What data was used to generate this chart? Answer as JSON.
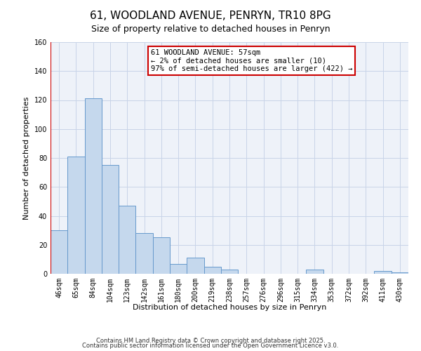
{
  "title": "61, WOODLAND AVENUE, PENRYN, TR10 8PG",
  "subtitle": "Size of property relative to detached houses in Penryn",
  "xlabel": "Distribution of detached houses by size in Penryn",
  "ylabel": "Number of detached properties",
  "bar_values": [
    30,
    81,
    121,
    75,
    47,
    28,
    25,
    7,
    11,
    5,
    3,
    0,
    0,
    0,
    0,
    3,
    0,
    0,
    0,
    2,
    1
  ],
  "bar_labels": [
    "46sqm",
    "65sqm",
    "84sqm",
    "104sqm",
    "123sqm",
    "142sqm",
    "161sqm",
    "180sqm",
    "200sqm",
    "219sqm",
    "238sqm",
    "257sqm",
    "276sqm",
    "296sqm",
    "315sqm",
    "334sqm",
    "353sqm",
    "372sqm",
    "392sqm",
    "411sqm",
    "430sqm"
  ],
  "bar_color": "#c5d8ed",
  "bar_edge_color": "#6699cc",
  "background_color": "#eef2f9",
  "grid_color": "#c8d4e8",
  "vline_color": "#cc0000",
  "ylim": [
    0,
    160
  ],
  "yticks": [
    0,
    20,
    40,
    60,
    80,
    100,
    120,
    140,
    160
  ],
  "annotation_text": "61 WOODLAND AVENUE: 57sqm\n← 2% of detached houses are smaller (10)\n97% of semi-detached houses are larger (422) →",
  "footnote1": "Contains HM Land Registry data © Crown copyright and database right 2025.",
  "footnote2": "Contains public sector information licensed under the Open Government Licence v3.0.",
  "title_fontsize": 11,
  "subtitle_fontsize": 9,
  "axis_label_fontsize": 8,
  "tick_fontsize": 7,
  "annotation_fontsize": 7.5,
  "footnote_fontsize": 6
}
